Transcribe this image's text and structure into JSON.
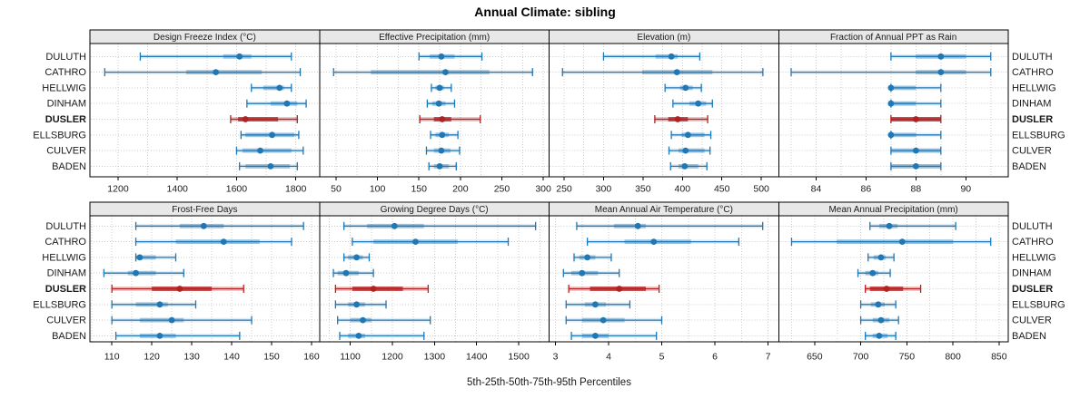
{
  "title": "Annual Climate: sibling",
  "xlabel": "5th-25th-50th-75th-95th Percentiles",
  "colors": {
    "normal": "#1f77b4",
    "highlight": "#b22222",
    "strip_bg": "#e8e8e8",
    "grid": "#cccccc",
    "border": "#000000",
    "text": "#1a1a1a"
  },
  "chart_data": {
    "type": "dotplot-percentiles",
    "percentile_levels": [
      5,
      25,
      50,
      75,
      95
    ],
    "stations": [
      "DULUTH",
      "CATHRO",
      "HELLWIG",
      "DINHAM",
      "DUSLER",
      "ELLSBURG",
      "CULVER",
      "BADEN"
    ],
    "highlight_station": "DUSLER",
    "panels": [
      {
        "title": "Design Freeze Index (°C)",
        "domain": [
          1105,
          1880
        ],
        "ticks": [
          1200,
          1400,
          1600,
          1800
        ],
        "minor_step": 100,
        "values": {
          "DULUTH": [
            1275,
            1555,
            1610,
            1650,
            1785
          ],
          "CATHRO": [
            1155,
            1430,
            1530,
            1685,
            1815
          ],
          "HELLWIG": [
            1650,
            1690,
            1745,
            1760,
            1785
          ],
          "DINHAM": [
            1635,
            1715,
            1770,
            1805,
            1835
          ],
          "DUSLER": [
            1580,
            1605,
            1630,
            1740,
            1805
          ],
          "ELLSBURG": [
            1615,
            1630,
            1720,
            1795,
            1810
          ],
          "CULVER": [
            1600,
            1620,
            1680,
            1785,
            1825
          ],
          "BADEN": [
            1610,
            1630,
            1715,
            1780,
            1805
          ]
        }
      },
      {
        "title": "Effective Precipitation (mm)",
        "domain": [
          30,
          307
        ],
        "ticks": [
          50,
          100,
          150,
          200,
          250,
          300
        ],
        "minor_step": 25,
        "values": {
          "DULUTH": [
            150,
            163,
            177,
            193,
            226
          ],
          "CATHRO": [
            47,
            92,
            182,
            235,
            287
          ],
          "HELLWIG": [
            165,
            170,
            175,
            180,
            189
          ],
          "DINHAM": [
            160,
            166,
            174,
            182,
            193
          ],
          "DUSLER": [
            151,
            168,
            178,
            189,
            224
          ],
          "ELLSBURG": [
            164,
            170,
            178,
            186,
            197
          ],
          "CULVER": [
            159,
            168,
            177,
            188,
            199
          ],
          "BADEN": [
            162,
            168,
            175,
            186,
            195
          ]
        }
      },
      {
        "title": "Elevation (m)",
        "domain": [
          231,
          522
        ],
        "ticks": [
          250,
          300,
          350,
          400,
          450,
          500
        ],
        "minor_step": 25,
        "values": {
          "DULUTH": [
            300,
            366,
            386,
            394,
            422
          ],
          "CATHRO": [
            248,
            349,
            393,
            438,
            502
          ],
          "HELLWIG": [
            378,
            397,
            404,
            413,
            424
          ],
          "DINHAM": [
            388,
            409,
            420,
            430,
            438
          ],
          "DUSLER": [
            365,
            382,
            394,
            407,
            432
          ],
          "ELLSBURG": [
            386,
            399,
            407,
            428,
            436
          ],
          "CULVER": [
            383,
            395,
            404,
            428,
            435
          ],
          "BADEN": [
            385,
            395,
            403,
            420,
            431
          ]
        }
      },
      {
        "title": "Fraction of Annual PPT as Rain",
        "domain": [
          82.5,
          91.7
        ],
        "ticks": [
          84,
          86,
          88,
          90
        ],
        "minor_step": 1,
        "values": {
          "DULUTH": [
            87,
            88,
            89,
            90,
            91
          ],
          "CATHRO": [
            83,
            88,
            89,
            90,
            91
          ],
          "HELLWIG": [
            87,
            87,
            87,
            88,
            89
          ],
          "DINHAM": [
            87,
            87,
            87,
            88,
            89
          ],
          "DUSLER": [
            87,
            87,
            88,
            89,
            89
          ],
          "ELLSBURG": [
            87,
            87,
            87,
            88,
            89
          ],
          "CULVER": [
            87,
            87,
            88,
            89,
            89
          ],
          "BADEN": [
            87,
            87,
            88,
            89,
            89
          ]
        }
      },
      {
        "title": "Frost-Free Days",
        "domain": [
          104.5,
          162
        ],
        "ticks": [
          110,
          120,
          130,
          140,
          150,
          160
        ],
        "minor_step": 5,
        "values": {
          "DULUTH": [
            116,
            127,
            133,
            138,
            158
          ],
          "CATHRO": [
            116,
            126,
            138,
            147,
            155
          ],
          "HELLWIG": [
            116,
            116,
            117,
            121,
            126
          ],
          "DINHAM": [
            108,
            114,
            116,
            121,
            128
          ],
          "DUSLER": [
            110,
            120,
            127,
            135,
            143
          ],
          "ELLSBURG": [
            110,
            116,
            122,
            124,
            131
          ],
          "CULVER": [
            110,
            117,
            125,
            128,
            145
          ],
          "BADEN": [
            111,
            117,
            122,
            126,
            142
          ]
        }
      },
      {
        "title": "Growing Degree Days (°C)",
        "domain": [
          1027,
          1572
        ],
        "ticks": [
          1100,
          1200,
          1300,
          1400,
          1500
        ],
        "minor_step": 50,
        "values": {
          "DULUTH": [
            1085,
            1140,
            1205,
            1275,
            1540
          ],
          "CATHRO": [
            1105,
            1155,
            1255,
            1355,
            1475
          ],
          "HELLWIG": [
            1085,
            1095,
            1115,
            1130,
            1145
          ],
          "DINHAM": [
            1060,
            1070,
            1090,
            1120,
            1155
          ],
          "DUSLER": [
            1065,
            1105,
            1155,
            1225,
            1285
          ],
          "ELLSBURG": [
            1065,
            1095,
            1115,
            1135,
            1185
          ],
          "CULVER": [
            1070,
            1100,
            1130,
            1150,
            1290
          ],
          "BADEN": [
            1075,
            1095,
            1120,
            1135,
            1275
          ]
        }
      },
      {
        "title": "Mean Annual Air Temperature (°C)",
        "domain": [
          2.88,
          7.2
        ],
        "ticks": [
          3,
          4,
          5,
          6,
          7
        ],
        "minor_step": 0.5,
        "values": {
          "DULUTH": [
            3.4,
            4.1,
            4.55,
            4.7,
            6.9
          ],
          "CATHRO": [
            3.6,
            4.3,
            4.85,
            5.55,
            6.45
          ],
          "HELLWIG": [
            3.35,
            3.45,
            3.6,
            3.75,
            4.05
          ],
          "DINHAM": [
            3.15,
            3.3,
            3.5,
            3.8,
            4.2
          ],
          "DUSLER": [
            3.25,
            3.65,
            4.2,
            4.7,
            4.95
          ],
          "ELLSBURG": [
            3.2,
            3.55,
            3.75,
            3.95,
            4.4
          ],
          "CULVER": [
            3.2,
            3.5,
            3.9,
            4.3,
            5.0
          ],
          "BADEN": [
            3.3,
            3.5,
            3.75,
            4.0,
            4.9
          ]
        }
      },
      {
        "title": "Mean Annual Precipitation (mm)",
        "domain": [
          611,
          860
        ],
        "ticks": [
          650,
          700,
          750,
          800,
          850
        ],
        "minor_step": 25,
        "values": {
          "DULUTH": [
            710,
            720,
            731,
            740,
            803
          ],
          "CATHRO": [
            625,
            674,
            745,
            800,
            841
          ],
          "HELLWIG": [
            708,
            714,
            722,
            727,
            736
          ],
          "DINHAM": [
            697,
            705,
            713,
            719,
            732
          ],
          "DUSLER": [
            705,
            710,
            728,
            746,
            765
          ],
          "ELLSBURG": [
            700,
            711,
            719,
            726,
            738
          ],
          "CULVER": [
            700,
            713,
            722,
            731,
            741
          ],
          "BADEN": [
            705,
            713,
            720,
            729,
            738
          ]
        }
      }
    ]
  }
}
